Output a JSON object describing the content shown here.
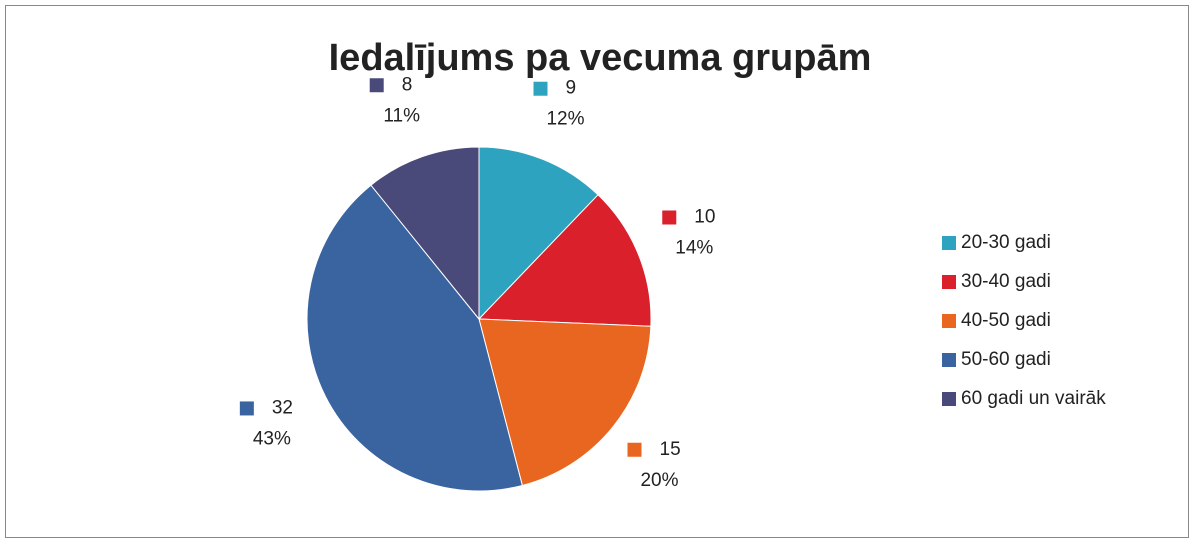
{
  "chart_data": {
    "type": "pie",
    "title": "Iedalījums pa vecuma grupām",
    "categories": [
      "20-30 gadi",
      "30-40 gadi",
      "40-50 gadi",
      "50-60 gadi",
      "60 gadi un vairāk"
    ],
    "values": [
      9,
      10,
      15,
      32,
      8
    ],
    "percent_labels": [
      "12%",
      "14%",
      "20%",
      "43%",
      "11%"
    ],
    "colors": [
      "#2ea3bf",
      "#d9202b",
      "#e8661f",
      "#3a64a0",
      "#4a4a7a"
    ],
    "legend": "right"
  }
}
